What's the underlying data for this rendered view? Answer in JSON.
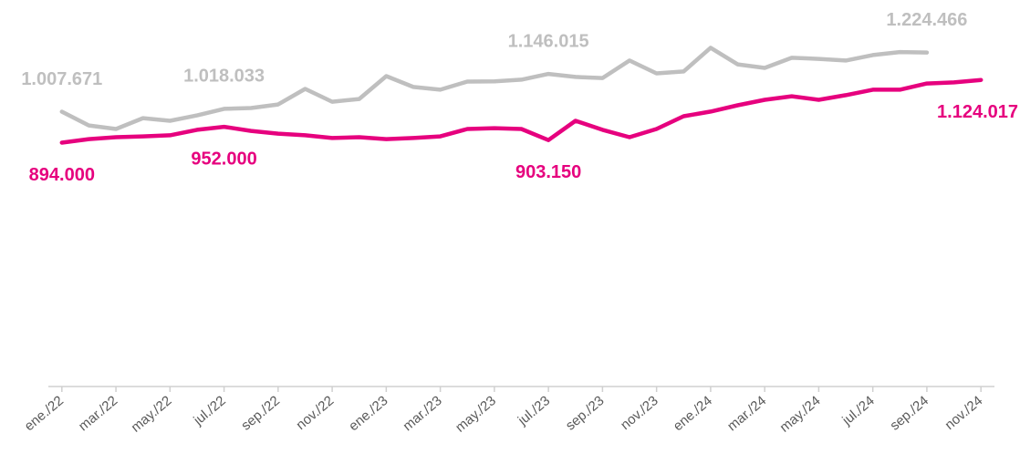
{
  "chart_data": {
    "type": "line",
    "categories": [
      "ene./22",
      null,
      "mar./22",
      null,
      "may./22",
      null,
      "jul./22",
      null,
      "sep./22",
      null,
      "nov./22",
      null,
      "ene./23",
      null,
      "mar./23",
      null,
      "may./23",
      null,
      "jul./23",
      null,
      "sep./23",
      null,
      "nov./23",
      null,
      "ene./24",
      null,
      "mar./24",
      null,
      "may./24",
      null,
      "jul./24",
      null,
      "sep./24",
      null,
      "nov./24"
    ],
    "series": [
      {
        "name": "gris",
        "color": "#bfbfbf",
        "values": [
          1007671,
          957000,
          944000,
          984000,
          974000,
          994000,
          1018033,
          1021000,
          1034000,
          1091000,
          1044000,
          1054000,
          1138000,
          1098000,
          1088000,
          1118000,
          1119000,
          1125000,
          1146015,
          1135000,
          1131000,
          1195000,
          1148000,
          1155000,
          1242000,
          1181000,
          1168000,
          1205000,
          1201000,
          1195000,
          1215000,
          1226000,
          1224466,
          null,
          null
        ],
        "value_labels": [
          "1.007.671",
          null,
          null,
          null,
          null,
          null,
          "1.018.033",
          null,
          null,
          null,
          null,
          null,
          null,
          null,
          null,
          null,
          null,
          null,
          "1.146.015",
          null,
          null,
          null,
          null,
          null,
          null,
          null,
          null,
          null,
          null,
          null,
          null,
          null,
          "1.224.466",
          null,
          null
        ]
      },
      {
        "name": "rosa",
        "color": "#e6007e",
        "values": [
          894000,
          907000,
          914000,
          917000,
          921000,
          941000,
          952000,
          937000,
          927000,
          921000,
          911000,
          914000,
          907000,
          911000,
          917000,
          944000,
          947000,
          944000,
          903150,
          974000,
          941000,
          914000,
          944000,
          991000,
          1008000,
          1031000,
          1051000,
          1064000,
          1051000,
          1068000,
          1088000,
          1088000,
          1111000,
          1115000,
          1124017
        ],
        "value_labels": [
          "894.000",
          null,
          null,
          null,
          null,
          null,
          "952.000",
          null,
          null,
          null,
          null,
          null,
          null,
          null,
          null,
          null,
          null,
          null,
          "903.150",
          null,
          null,
          null,
          null,
          null,
          null,
          null,
          null,
          null,
          null,
          null,
          null,
          null,
          null,
          null,
          "1.124.017"
        ]
      }
    ],
    "ylim": [
      0,
      1300000
    ]
  }
}
